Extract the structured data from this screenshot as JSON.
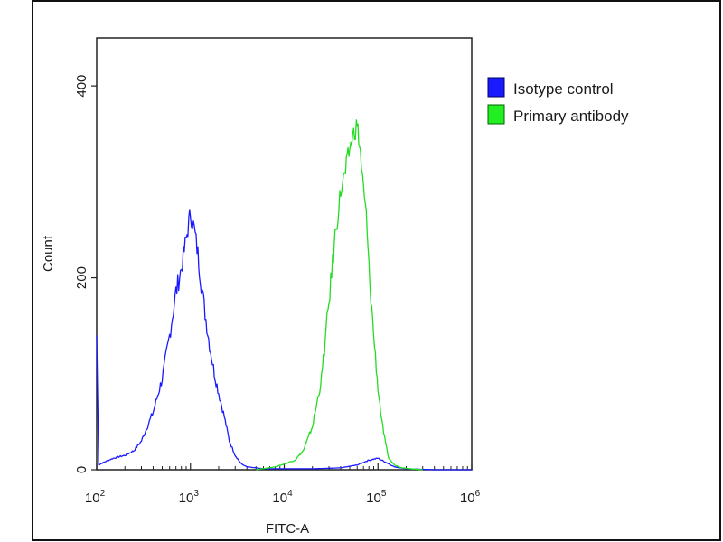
{
  "chart_data": {
    "type": "line",
    "xlabel": "FITC-A",
    "ylabel": "Count",
    "x_scale": "log",
    "xlim": [
      100,
      1000000
    ],
    "ylim": [
      0,
      450
    ],
    "x_ticks": [
      {
        "base": "10",
        "exp": "2",
        "value": 100
      },
      {
        "base": "10",
        "exp": "3",
        "value": 1000
      },
      {
        "base": "10",
        "exp": "4",
        "value": 10000
      },
      {
        "base": "10",
        "exp": "5",
        "value": 100000
      },
      {
        "base": "10",
        "exp": "6",
        "value": 1000000
      }
    ],
    "y_ticks": [
      {
        "label": "0",
        "value": 0
      },
      {
        "label": "200",
        "value": 200
      },
      {
        "label": "400",
        "value": 400
      }
    ],
    "legend": {
      "position": "top-right"
    },
    "grid": false,
    "series": [
      {
        "name": "Isotype control",
        "color": "#1a1aff",
        "x": [
          100,
          105,
          120,
          150,
          200,
          250,
          300,
          400,
          500,
          600,
          700,
          800,
          900,
          1000,
          1100,
          1200,
          1300,
          1400,
          1600,
          1800,
          2000,
          2300,
          2600,
          3000,
          3500,
          4000,
          5000,
          6000,
          10000,
          20000,
          40000,
          60000,
          80000,
          100000,
          120000,
          150000,
          200000,
          400000,
          1000000
        ],
        "y": [
          140,
          5,
          8,
          12,
          15,
          20,
          30,
          60,
          95,
          140,
          185,
          210,
          240,
          268,
          250,
          225,
          195,
          170,
          130,
          100,
          80,
          55,
          30,
          15,
          6,
          3,
          2,
          1,
          1,
          1,
          2,
          5,
          10,
          12,
          8,
          3,
          1,
          0,
          0
        ]
      },
      {
        "name": "Primary antibody",
        "color": "#22dd22",
        "x": [
          5000,
          8000,
          10000,
          13000,
          16000,
          20000,
          25000,
          30000,
          35000,
          40000,
          45000,
          50000,
          55000,
          60000,
          65000,
          70000,
          75000,
          80000,
          90000,
          100000,
          110000,
          120000,
          130000,
          150000,
          180000,
          220000,
          300000
        ],
        "y": [
          0,
          3,
          6,
          10,
          20,
          45,
          95,
          175,
          245,
          290,
          310,
          335,
          350,
          360,
          330,
          290,
          265,
          210,
          140,
          85,
          50,
          28,
          12,
          5,
          2,
          1,
          0
        ]
      }
    ]
  }
}
